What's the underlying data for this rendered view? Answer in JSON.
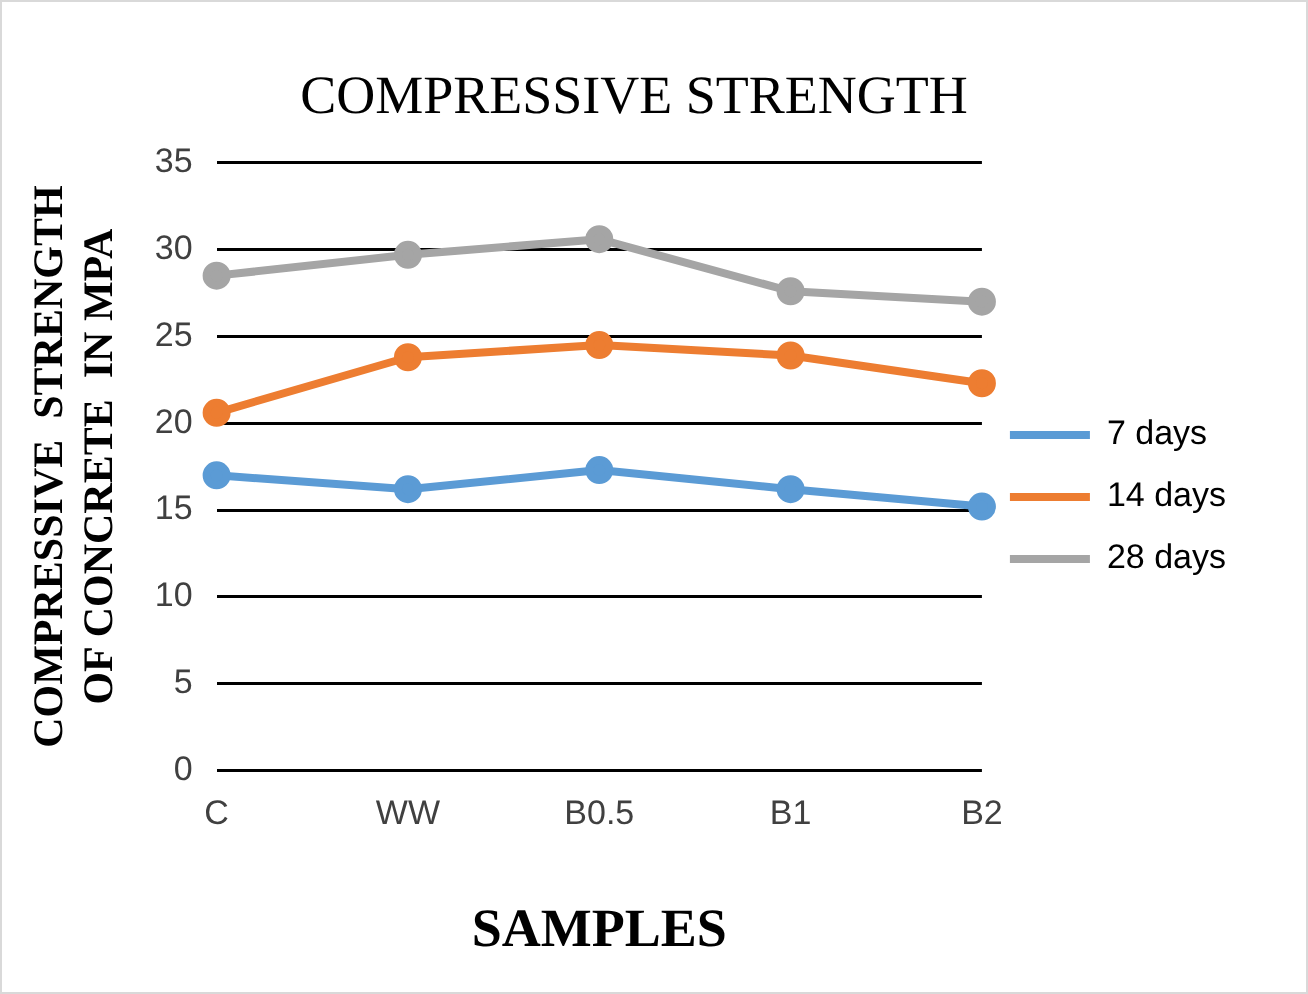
{
  "chart_data": {
    "type": "line",
    "title": "COMPRESSIVE STRENGTH",
    "xlabel": "SAMPLES",
    "ylabel": "COMPRESSIVE  STRENGTH\nOF CONCRETE  IN MPA",
    "categories": [
      "C",
      "WW",
      "B0.5",
      "B1",
      "B2"
    ],
    "series": [
      {
        "name": "7 days",
        "color": "#5b9bd5",
        "values": [
          17.0,
          16.2,
          17.3,
          16.2,
          15.2
        ]
      },
      {
        "name": "14 days",
        "color": "#ed7d31",
        "values": [
          20.6,
          23.8,
          24.5,
          23.9,
          22.3
        ]
      },
      {
        "name": "28 days",
        "color": "#a5a5a5",
        "values": [
          28.5,
          29.7,
          30.6,
          27.6,
          27.0
        ]
      }
    ],
    "ylim": [
      0,
      35
    ],
    "yticks": [
      0,
      5,
      10,
      15,
      20,
      25,
      30,
      35
    ],
    "grid": "y",
    "legend": "right",
    "marker": "circle",
    "line_style": "solid"
  }
}
